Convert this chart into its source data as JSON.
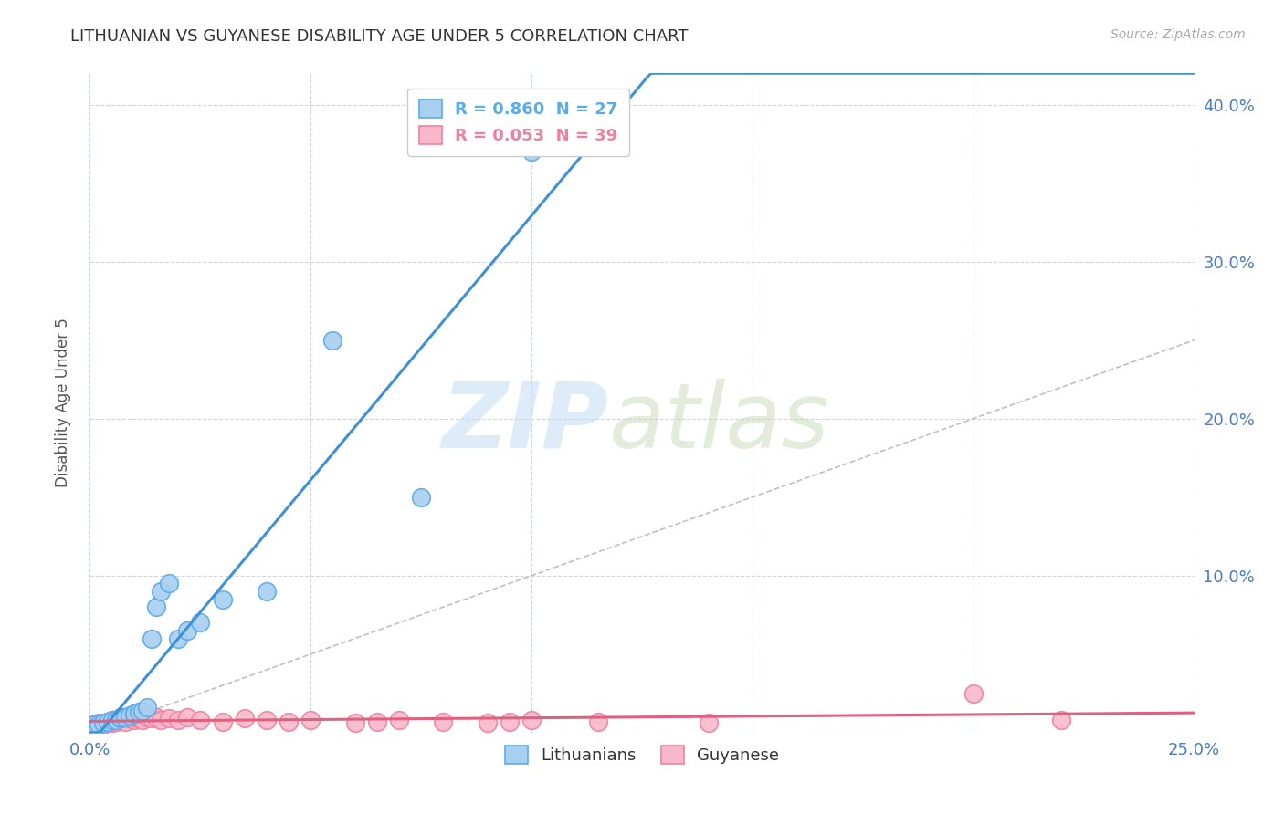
{
  "title": "LITHUANIAN VS GUYANESE DISABILITY AGE UNDER 5 CORRELATION CHART",
  "source": "Source: ZipAtlas.com",
  "ylabel": "Disability Age Under 5",
  "xlim": [
    0.0,
    0.25
  ],
  "ylim": [
    0.0,
    0.42
  ],
  "x_ticks": [
    0.0,
    0.05,
    0.1,
    0.15,
    0.2,
    0.25
  ],
  "y_ticks": [
    0.0,
    0.1,
    0.2,
    0.3,
    0.4
  ],
  "legend_entries": [
    {
      "label": "R = 0.860  N = 27",
      "color": "#5aabea"
    },
    {
      "label": "R = 0.053  N = 39",
      "color": "#f080a0"
    }
  ],
  "legend_labels_bottom": [
    "Lithuanians",
    "Guyanese"
  ],
  "blue_scatter_color": "#a8cff0",
  "pink_scatter_color": "#f8b8cc",
  "blue_edge_color": "#5aabea",
  "pink_edge_color": "#f080a0",
  "blue_line_color": "#4090d8",
  "pink_line_color": "#e06080",
  "diagonal_color": "#c0c0c0",
  "background_color": "#ffffff",
  "grid_color": "#c8d8e8",
  "lithuanians_x": [
    0.001,
    0.002,
    0.003,
    0.004,
    0.005,
    0.006,
    0.007,
    0.007,
    0.008,
    0.009,
    0.01,
    0.01,
    0.011,
    0.012,
    0.013,
    0.014,
    0.015,
    0.016,
    0.018,
    0.02,
    0.022,
    0.025,
    0.03,
    0.04,
    0.055,
    0.075,
    0.1
  ],
  "lithuanians_y": [
    0.005,
    0.005,
    0.006,
    0.007,
    0.008,
    0.008,
    0.009,
    0.01,
    0.01,
    0.011,
    0.012,
    0.012,
    0.013,
    0.014,
    0.016,
    0.06,
    0.08,
    0.09,
    0.095,
    0.06,
    0.065,
    0.07,
    0.085,
    0.09,
    0.25,
    0.15,
    0.37
  ],
  "guyanese_x": [
    0.001,
    0.002,
    0.003,
    0.004,
    0.005,
    0.005,
    0.006,
    0.007,
    0.007,
    0.008,
    0.009,
    0.01,
    0.01,
    0.011,
    0.012,
    0.013,
    0.014,
    0.015,
    0.016,
    0.018,
    0.02,
    0.022,
    0.025,
    0.03,
    0.035,
    0.04,
    0.045,
    0.05,
    0.06,
    0.065,
    0.07,
    0.08,
    0.09,
    0.095,
    0.1,
    0.115,
    0.14,
    0.2,
    0.22
  ],
  "guyanese_y": [
    0.005,
    0.006,
    0.005,
    0.007,
    0.006,
    0.008,
    0.007,
    0.008,
    0.009,
    0.007,
    0.009,
    0.008,
    0.01,
    0.009,
    0.008,
    0.01,
    0.009,
    0.01,
    0.008,
    0.009,
    0.008,
    0.01,
    0.008,
    0.007,
    0.009,
    0.008,
    0.007,
    0.008,
    0.006,
    0.007,
    0.008,
    0.007,
    0.006,
    0.007,
    0.008,
    0.007,
    0.006,
    0.025,
    0.008
  ]
}
